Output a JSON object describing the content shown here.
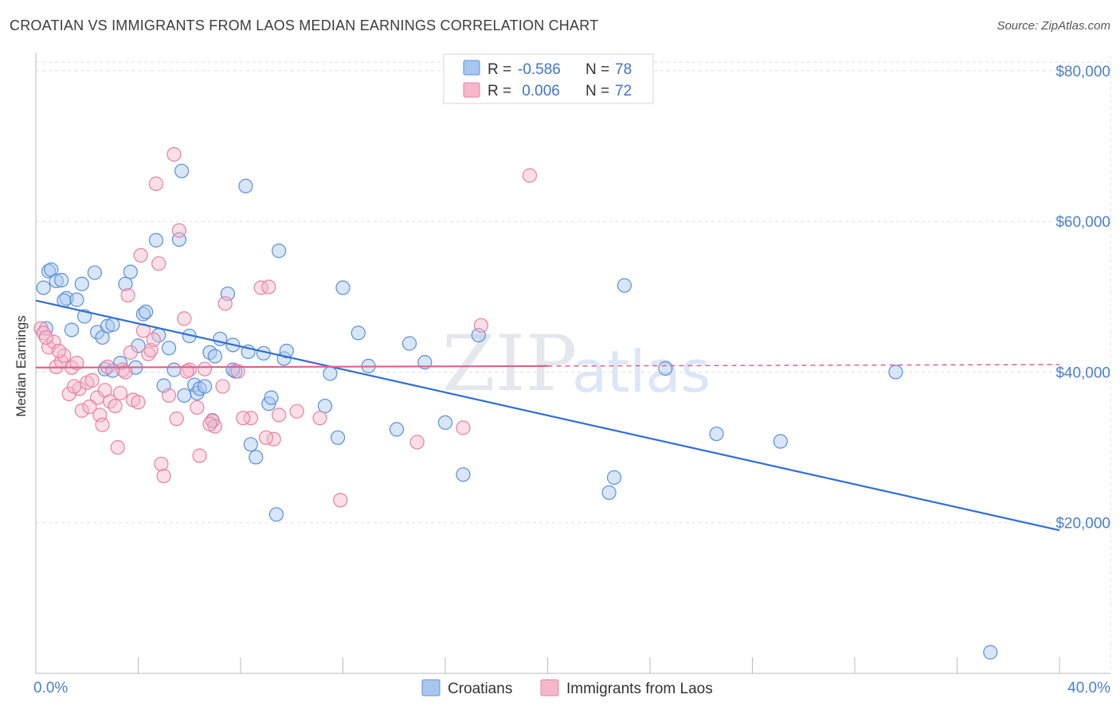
{
  "title": "CROATIAN VS IMMIGRANTS FROM LAOS MEDIAN EARNINGS CORRELATION CHART",
  "source": "Source: ZipAtlas.com",
  "watermark": {
    "part1": "ZIP",
    "part2": "atlas"
  },
  "colors": {
    "croatians": "#5a8fd8",
    "croatians_fill": "#a9c7ee",
    "laos": "#e87fa1",
    "laos_fill": "#f5b8cb",
    "trend_croatians": "#2f6fd0",
    "trend_laos": "#e0608a",
    "grid": "#dddddd",
    "tick_label": "#4a7fcf"
  },
  "legend": {
    "rows": [
      {
        "r_label": "R = ",
        "r_value": "-0.586",
        "n_label": "N = ",
        "n_value": "78"
      },
      {
        "r_label": "R = ",
        "r_value": " 0.006",
        "n_label": "N = ",
        "n_value": "72"
      }
    ]
  },
  "chart_data": {
    "type": "scatter",
    "title": "CROATIAN VS IMMIGRANTS FROM LAOS MEDIAN EARNINGS CORRELATION CHART",
    "xlabel": "",
    "ylabel": "Median Earnings",
    "xlim": [
      0,
      40
    ],
    "ylim": [
      0,
      82000
    ],
    "x_tick_labels": [
      "0.0%",
      "40.0%"
    ],
    "y_ticks": [
      20000,
      40000,
      60000,
      80000
    ],
    "y_tick_labels": [
      "$20,000",
      "$40,000",
      "$60,000",
      "$80,000"
    ],
    "grid": true,
    "legend_position": "top-center",
    "series": [
      {
        "name": "Croatians",
        "trend": {
          "x": [
            0,
            40
          ],
          "y": [
            49500,
            19000
          ]
        },
        "points": [
          [
            0.3,
            51200
          ],
          [
            0.5,
            53400
          ],
          [
            0.6,
            53600
          ],
          [
            0.8,
            52100
          ],
          [
            1.0,
            52200
          ],
          [
            1.2,
            49800
          ],
          [
            1.4,
            45600
          ],
          [
            1.6,
            49600
          ],
          [
            1.8,
            51700
          ],
          [
            1.9,
            47400
          ],
          [
            2.3,
            53200
          ],
          [
            2.4,
            45300
          ],
          [
            2.6,
            44600
          ],
          [
            2.7,
            40400
          ],
          [
            2.8,
            46100
          ],
          [
            3.0,
            46300
          ],
          [
            3.3,
            41200
          ],
          [
            3.5,
            51700
          ],
          [
            3.7,
            53300
          ],
          [
            3.9,
            40600
          ],
          [
            4.0,
            43500
          ],
          [
            4.2,
            47700
          ],
          [
            4.3,
            48000
          ],
          [
            4.7,
            57500
          ],
          [
            4.8,
            44900
          ],
          [
            5.0,
            38200
          ],
          [
            5.2,
            43200
          ],
          [
            5.4,
            40300
          ],
          [
            5.6,
            57600
          ],
          [
            5.7,
            66700
          ],
          [
            5.8,
            36900
          ],
          [
            6.0,
            44800
          ],
          [
            6.2,
            38300
          ],
          [
            6.3,
            37200
          ],
          [
            6.4,
            37800
          ],
          [
            6.6,
            38100
          ],
          [
            6.8,
            42600
          ],
          [
            6.9,
            33500
          ],
          [
            7.0,
            42100
          ],
          [
            7.2,
            44400
          ],
          [
            7.5,
            50400
          ],
          [
            7.7,
            43600
          ],
          [
            7.8,
            40100
          ],
          [
            8.2,
            64700
          ],
          [
            8.3,
            42700
          ],
          [
            8.4,
            30400
          ],
          [
            8.6,
            28700
          ],
          [
            8.9,
            42500
          ],
          [
            9.1,
            35800
          ],
          [
            9.2,
            36600
          ],
          [
            9.4,
            21100
          ],
          [
            9.5,
            56100
          ],
          [
            9.7,
            41800
          ],
          [
            9.8,
            42800
          ],
          [
            11.3,
            35500
          ],
          [
            11.5,
            39800
          ],
          [
            11.8,
            31300
          ],
          [
            12.0,
            51200
          ],
          [
            12.6,
            45200
          ],
          [
            13.0,
            40800
          ],
          [
            14.1,
            32400
          ],
          [
            14.6,
            43800
          ],
          [
            15.2,
            41300
          ],
          [
            16.0,
            33300
          ],
          [
            16.7,
            26400
          ],
          [
            17.3,
            44900
          ],
          [
            22.4,
            24000
          ],
          [
            22.6,
            26000
          ],
          [
            23.0,
            51500
          ],
          [
            24.6,
            40500
          ],
          [
            26.6,
            31800
          ],
          [
            29.1,
            30800
          ],
          [
            33.6,
            40000
          ],
          [
            37.3,
            2800
          ],
          [
            0.4,
            45800
          ],
          [
            1.1,
            49500
          ],
          [
            3.0,
            40200
          ],
          [
            7.7,
            40300
          ]
        ]
      },
      {
        "name": "Immigrants from Laos",
        "trend": {
          "x": [
            0,
            40
          ],
          "y": [
            40600,
            41000
          ]
        },
        "points": [
          [
            0.2,
            45800
          ],
          [
            0.3,
            45200
          ],
          [
            0.5,
            43300
          ],
          [
            0.7,
            44000
          ],
          [
            0.8,
            40700
          ],
          [
            1.0,
            41400
          ],
          [
            1.1,
            42200
          ],
          [
            1.3,
            37100
          ],
          [
            1.4,
            40600
          ],
          [
            1.6,
            41200
          ],
          [
            1.7,
            37800
          ],
          [
            1.8,
            34900
          ],
          [
            2.0,
            38600
          ],
          [
            2.2,
            38900
          ],
          [
            2.4,
            36600
          ],
          [
            2.5,
            34300
          ],
          [
            2.6,
            33000
          ],
          [
            2.8,
            40700
          ],
          [
            2.9,
            36100
          ],
          [
            3.1,
            35500
          ],
          [
            3.2,
            30000
          ],
          [
            3.3,
            37200
          ],
          [
            3.4,
            40300
          ],
          [
            3.6,
            50200
          ],
          [
            3.7,
            42600
          ],
          [
            3.8,
            36300
          ],
          [
            4.0,
            36000
          ],
          [
            4.1,
            55500
          ],
          [
            4.2,
            45500
          ],
          [
            4.4,
            42400
          ],
          [
            4.5,
            42900
          ],
          [
            4.7,
            65000
          ],
          [
            4.8,
            54400
          ],
          [
            4.9,
            27800
          ],
          [
            5.0,
            26200
          ],
          [
            5.2,
            36900
          ],
          [
            5.4,
            68900
          ],
          [
            5.5,
            33800
          ],
          [
            5.6,
            58800
          ],
          [
            5.8,
            47100
          ],
          [
            6.0,
            40300
          ],
          [
            6.3,
            35300
          ],
          [
            6.4,
            28900
          ],
          [
            6.6,
            40400
          ],
          [
            6.9,
            33600
          ],
          [
            7.0,
            32800
          ],
          [
            7.3,
            38100
          ],
          [
            7.4,
            49100
          ],
          [
            7.9,
            40100
          ],
          [
            8.4,
            33900
          ],
          [
            8.8,
            51200
          ],
          [
            9.1,
            51300
          ],
          [
            9.3,
            31100
          ],
          [
            9.5,
            34300
          ],
          [
            10.2,
            34800
          ],
          [
            11.1,
            33900
          ],
          [
            11.9,
            23000
          ],
          [
            14.9,
            30700
          ],
          [
            16.7,
            32600
          ],
          [
            17.4,
            46200
          ],
          [
            19.3,
            66100
          ],
          [
            0.4,
            44600
          ],
          [
            0.9,
            42800
          ],
          [
            1.5,
            38100
          ],
          [
            2.1,
            35400
          ],
          [
            2.7,
            37600
          ],
          [
            3.5,
            40000
          ],
          [
            4.6,
            44300
          ],
          [
            5.9,
            40100
          ],
          [
            6.8,
            33100
          ],
          [
            8.1,
            33900
          ],
          [
            9.0,
            31300
          ]
        ]
      }
    ]
  },
  "bottom_legend": [
    {
      "label": "Croatians"
    },
    {
      "label": "Immigrants from Laos"
    }
  ]
}
